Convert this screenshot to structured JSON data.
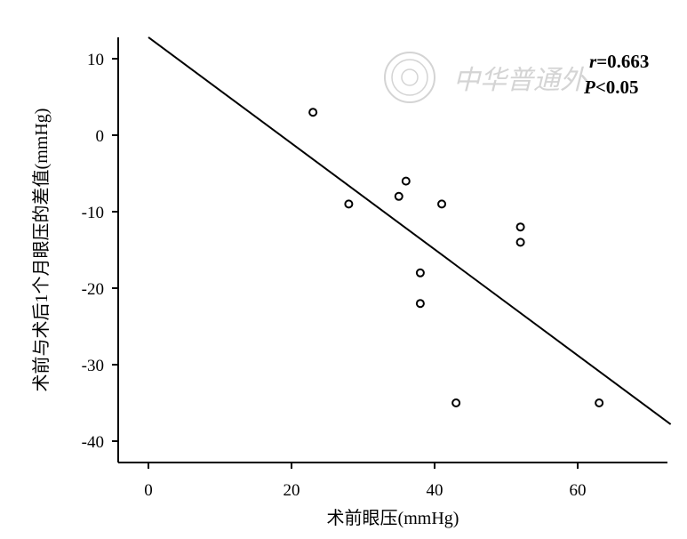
{
  "chart_data": {
    "type": "scatter",
    "title": "",
    "xlabel": "术前眼压(mmHg)",
    "ylabel": "术前与术后1个月眼压的差值(mmHg)",
    "xlim": [
      -4,
      73
    ],
    "ylim": [
      -43,
      13
    ],
    "x_ticks": [
      0,
      20,
      40,
      60
    ],
    "y_ticks": [
      10,
      0,
      -10,
      -20,
      -30,
      -40
    ],
    "x_tick_labels": [
      "0",
      "20",
      "40",
      "60"
    ],
    "y_tick_labels": [
      "10",
      "0",
      "-10",
      "-20",
      "-30",
      "-40"
    ],
    "points": [
      {
        "x": 23,
        "y": 3
      },
      {
        "x": 28,
        "y": -9
      },
      {
        "x": 35,
        "y": -8
      },
      {
        "x": 36,
        "y": -6
      },
      {
        "x": 41,
        "y": -9
      },
      {
        "x": 38,
        "y": -18
      },
      {
        "x": 38,
        "y": -22
      },
      {
        "x": 43,
        "y": -35
      },
      {
        "x": 52,
        "y": -12
      },
      {
        "x": 52,
        "y": -14
      },
      {
        "x": 63,
        "y": -35
      }
    ],
    "regression_line": {
      "x": [
        0,
        73
      ],
      "y": [
        12.8,
        -37.8
      ]
    },
    "annotations": {
      "r_symbol": "r",
      "r_value": "=0.663",
      "p_symbol": "P",
      "p_value": "<0.05"
    },
    "watermark": "中华普通外",
    "grid": false,
    "legend": "none"
  }
}
